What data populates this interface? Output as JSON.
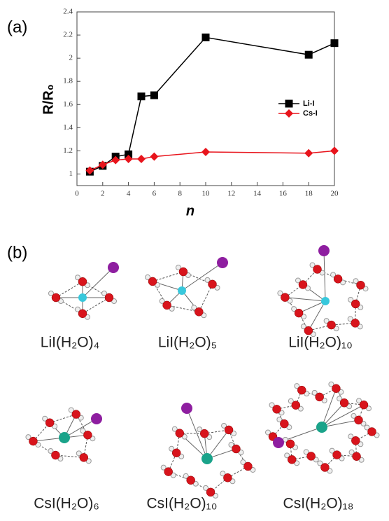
{
  "chart_data": {
    "type": "line",
    "x_label": "n",
    "y_label": "R/R₀",
    "xlim": [
      0,
      20
    ],
    "xticks": [
      0,
      2,
      4,
      6,
      8,
      10,
      12,
      14,
      16,
      18,
      20
    ],
    "ylim": [
      0.9,
      2.4
    ],
    "yticks": [
      1,
      1.2,
      1.4,
      1.6,
      1.8,
      2,
      2.2,
      2.4
    ],
    "legend": "right",
    "series": [
      {
        "name": "Li-I",
        "color": "#000000",
        "marker": "square",
        "x": [
          1,
          2,
          3,
          4,
          5,
          6,
          10,
          18,
          20
        ],
        "values": [
          1.02,
          1.07,
          1.15,
          1.17,
          1.67,
          1.68,
          2.18,
          2.03,
          2.13
        ]
      },
      {
        "name": "Cs-I",
        "color": "#e8141c",
        "marker": "diamond",
        "x": [
          1,
          2,
          3,
          4,
          5,
          6,
          10,
          18,
          20
        ],
        "values": [
          1.03,
          1.08,
          1.12,
          1.13,
          1.13,
          1.15,
          1.19,
          1.18,
          1.2
        ]
      }
    ]
  },
  "figure": {
    "panel_a": "(a)",
    "panel_b": "(b)",
    "structures": [
      "LiI(H₂O)₄",
      "LiI(H₂O)₅",
      "LiI(H₂O)₁₀",
      "CsI(H₂O)₆",
      "CsI(H₂O)₁₀",
      "CsI(H₂O)₁₈"
    ]
  }
}
